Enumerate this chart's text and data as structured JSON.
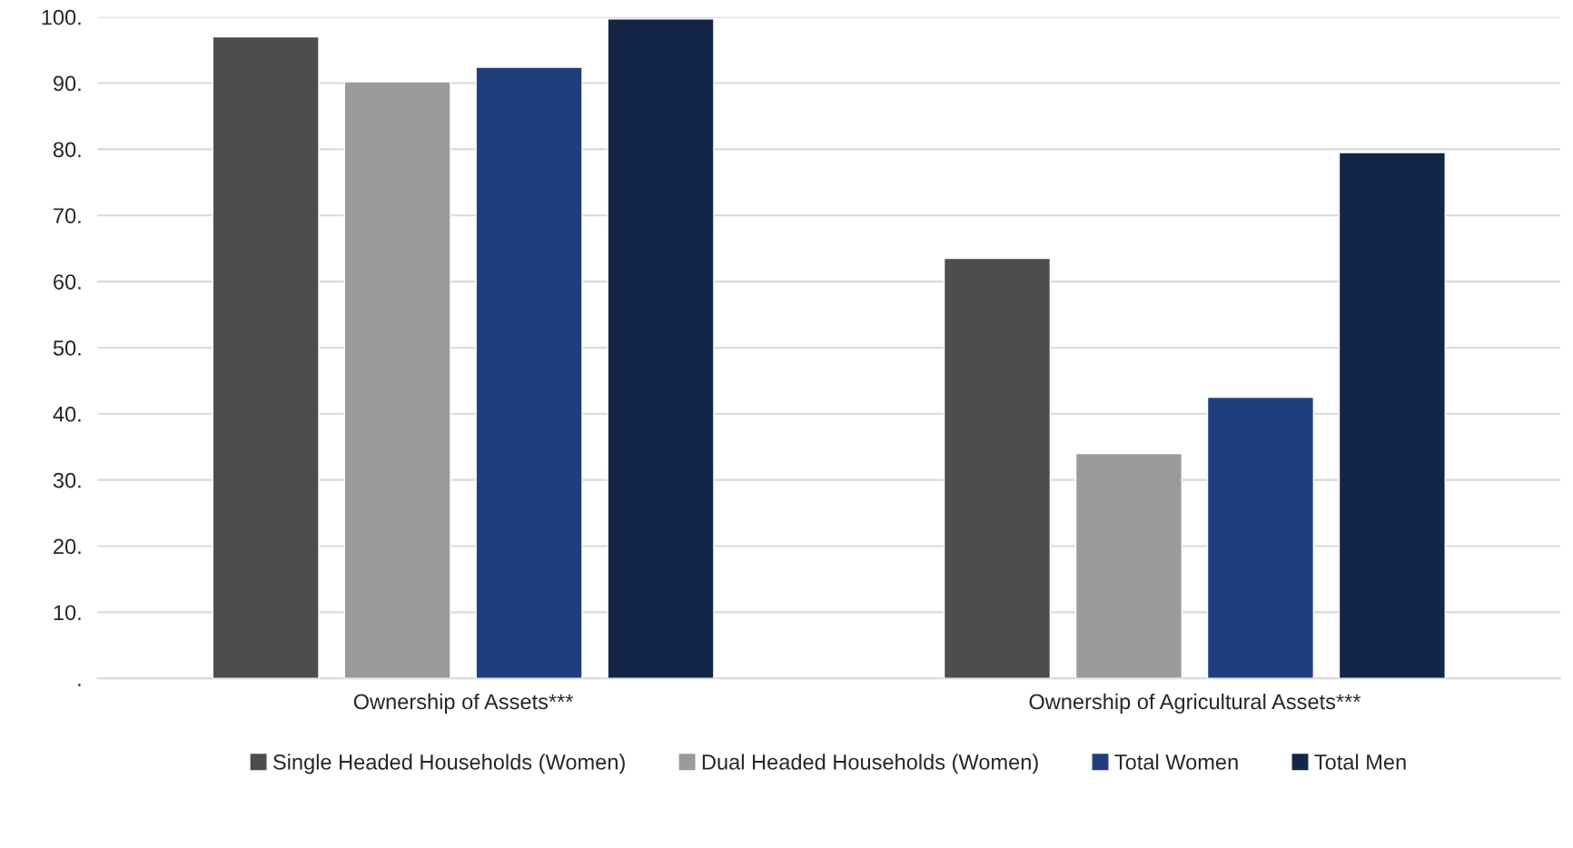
{
  "chart_data": {
    "type": "bar",
    "categories": [
      "Ownership of Assets***",
      "Ownership of Agricultural Assets***"
    ],
    "series": [
      {
        "name": "Single Headed Households (Women)",
        "color": "#4d4d4d",
        "values": [
          97.0,
          63.5
        ]
      },
      {
        "name": "Dual Headed Households (Women)",
        "color": "#9b9b9b",
        "values": [
          90.2,
          34.0
        ]
      },
      {
        "name": "Total Women",
        "color": "#1f3f7c",
        "values": [
          92.4,
          42.5
        ]
      },
      {
        "name": "Total Men",
        "color": "#132648",
        "values": [
          99.7,
          79.5
        ]
      }
    ],
    "ylim": [
      0,
      100
    ],
    "yticks": [
      {
        "value": 0,
        "label": "."
      },
      {
        "value": 10,
        "label": "10."
      },
      {
        "value": 20,
        "label": "20."
      },
      {
        "value": 30,
        "label": "30."
      },
      {
        "value": 40,
        "label": "40."
      },
      {
        "value": 50,
        "label": "50."
      },
      {
        "value": 60,
        "label": "60."
      },
      {
        "value": 70,
        "label": "70."
      },
      {
        "value": 80,
        "label": "80."
      },
      {
        "value": 90,
        "label": "90."
      },
      {
        "value": 100,
        "label": "100."
      }
    ],
    "grid": "y",
    "legend": "bottom"
  }
}
